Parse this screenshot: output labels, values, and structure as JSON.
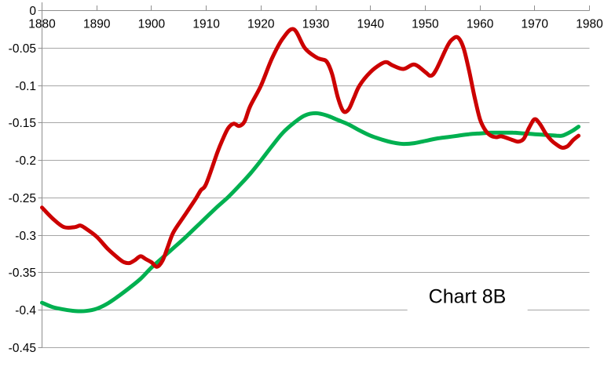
{
  "colors": {
    "red_series": "#CC0000",
    "green_series": "#00B050",
    "gridline": "#A6A6A6",
    "axis": "#8F8F8F",
    "text": "#000000",
    "background": "#FFFFFF"
  },
  "chart_data": {
    "type": "line",
    "title": "Chart 8B",
    "xlim": [
      1880,
      1980
    ],
    "ylim": [
      -0.45,
      0
    ],
    "x_axis_position": "top",
    "grid": "horizontal",
    "legend": "none",
    "x_ticks": [
      1880,
      1890,
      1900,
      1910,
      1920,
      1930,
      1940,
      1950,
      1960,
      1970,
      1980
    ],
    "y_ticks": [
      0,
      -0.05,
      -0.1,
      -0.15,
      -0.2,
      -0.25,
      -0.3,
      -0.35,
      -0.4,
      -0.45
    ],
    "y_tick_labels": [
      "0",
      "-0.05",
      "-0.1",
      "-0.15",
      "-0.2",
      "-0.25",
      "-0.3",
      "-0.35",
      "-0.4",
      "-0.45"
    ],
    "annotation": {
      "text": "Chart 8B",
      "x": 1957.5,
      "y": -0.383
    },
    "series": [
      {
        "name": "green-series",
        "color": "#00B050",
        "stroke_width": 5,
        "points": [
          [
            1880,
            -0.39
          ],
          [
            1882,
            -0.396
          ],
          [
            1884,
            -0.399
          ],
          [
            1886,
            -0.401
          ],
          [
            1888,
            -0.401
          ],
          [
            1890,
            -0.398
          ],
          [
            1892,
            -0.391
          ],
          [
            1894,
            -0.381
          ],
          [
            1896,
            -0.37
          ],
          [
            1898,
            -0.358
          ],
          [
            1900,
            -0.343
          ],
          [
            1902,
            -0.33
          ],
          [
            1904,
            -0.317
          ],
          [
            1906,
            -0.304
          ],
          [
            1908,
            -0.29
          ],
          [
            1910,
            -0.276
          ],
          [
            1912,
            -0.262
          ],
          [
            1914,
            -0.249
          ],
          [
            1916,
            -0.234
          ],
          [
            1918,
            -0.218
          ],
          [
            1920,
            -0.2
          ],
          [
            1922,
            -0.181
          ],
          [
            1924,
            -0.163
          ],
          [
            1926,
            -0.15
          ],
          [
            1928,
            -0.14
          ],
          [
            1930,
            -0.137
          ],
          [
            1932,
            -0.14
          ],
          [
            1934,
            -0.146
          ],
          [
            1936,
            -0.152
          ],
          [
            1938,
            -0.16
          ],
          [
            1940,
            -0.167
          ],
          [
            1942,
            -0.172
          ],
          [
            1944,
            -0.176
          ],
          [
            1946,
            -0.178
          ],
          [
            1948,
            -0.177
          ],
          [
            1950,
            -0.174
          ],
          [
            1952,
            -0.171
          ],
          [
            1954,
            -0.169
          ],
          [
            1956,
            -0.167
          ],
          [
            1958,
            -0.165
          ],
          [
            1960,
            -0.164
          ],
          [
            1962,
            -0.163
          ],
          [
            1964,
            -0.163
          ],
          [
            1966,
            -0.163
          ],
          [
            1968,
            -0.164
          ],
          [
            1970,
            -0.165
          ],
          [
            1972,
            -0.166
          ],
          [
            1974,
            -0.167
          ],
          [
            1975,
            -0.167
          ],
          [
            1976,
            -0.164
          ],
          [
            1977,
            -0.16
          ],
          [
            1978,
            -0.155
          ]
        ]
      },
      {
        "name": "red-series",
        "color": "#CC0000",
        "stroke_width": 5,
        "points": [
          [
            1880,
            -0.263
          ],
          [
            1882,
            -0.278
          ],
          [
            1884,
            -0.289
          ],
          [
            1886,
            -0.289
          ],
          [
            1887,
            -0.287
          ],
          [
            1888,
            -0.291
          ],
          [
            1890,
            -0.302
          ],
          [
            1892,
            -0.318
          ],
          [
            1894,
            -0.331
          ],
          [
            1895,
            -0.336
          ],
          [
            1896,
            -0.337
          ],
          [
            1897,
            -0.333
          ],
          [
            1898,
            -0.328
          ],
          [
            1899,
            -0.332
          ],
          [
            1900,
            -0.336
          ],
          [
            1901,
            -0.342
          ],
          [
            1902,
            -0.334
          ],
          [
            1903,
            -0.315
          ],
          [
            1904,
            -0.296
          ],
          [
            1906,
            -0.274
          ],
          [
            1908,
            -0.252
          ],
          [
            1909,
            -0.24
          ],
          [
            1910,
            -0.231
          ],
          [
            1912,
            -0.19
          ],
          [
            1913,
            -0.172
          ],
          [
            1914,
            -0.157
          ],
          [
            1915,
            -0.151
          ],
          [
            1916,
            -0.154
          ],
          [
            1917,
            -0.148
          ],
          [
            1918,
            -0.128
          ],
          [
            1920,
            -0.1
          ],
          [
            1922,
            -0.064
          ],
          [
            1924,
            -0.037
          ],
          [
            1926,
            -0.025
          ],
          [
            1928,
            -0.05
          ],
          [
            1930,
            -0.062
          ],
          [
            1931,
            -0.065
          ],
          [
            1932,
            -0.068
          ],
          [
            1933,
            -0.085
          ],
          [
            1934,
            -0.115
          ],
          [
            1935,
            -0.134
          ],
          [
            1936,
            -0.132
          ],
          [
            1937,
            -0.116
          ],
          [
            1938,
            -0.1
          ],
          [
            1940,
            -0.082
          ],
          [
            1942,
            -0.071
          ],
          [
            1943,
            -0.069
          ],
          [
            1944,
            -0.073
          ],
          [
            1946,
            -0.078
          ],
          [
            1948,
            -0.072
          ],
          [
            1950,
            -0.082
          ],
          [
            1951,
            -0.087
          ],
          [
            1952,
            -0.079
          ],
          [
            1954,
            -0.048
          ],
          [
            1955,
            -0.038
          ],
          [
            1956,
            -0.036
          ],
          [
            1957,
            -0.05
          ],
          [
            1958,
            -0.08
          ],
          [
            1959,
            -0.115
          ],
          [
            1960,
            -0.145
          ],
          [
            1961,
            -0.16
          ],
          [
            1962,
            -0.167
          ],
          [
            1963,
            -0.169
          ],
          [
            1964,
            -0.168
          ],
          [
            1966,
            -0.173
          ],
          [
            1967,
            -0.175
          ],
          [
            1968,
            -0.171
          ],
          [
            1969,
            -0.156
          ],
          [
            1970,
            -0.145
          ],
          [
            1971,
            -0.152
          ],
          [
            1972,
            -0.164
          ],
          [
            1973,
            -0.173
          ],
          [
            1974,
            -0.179
          ],
          [
            1975,
            -0.183
          ],
          [
            1976,
            -0.181
          ],
          [
            1977,
            -0.173
          ],
          [
            1978,
            -0.167
          ]
        ]
      }
    ]
  }
}
